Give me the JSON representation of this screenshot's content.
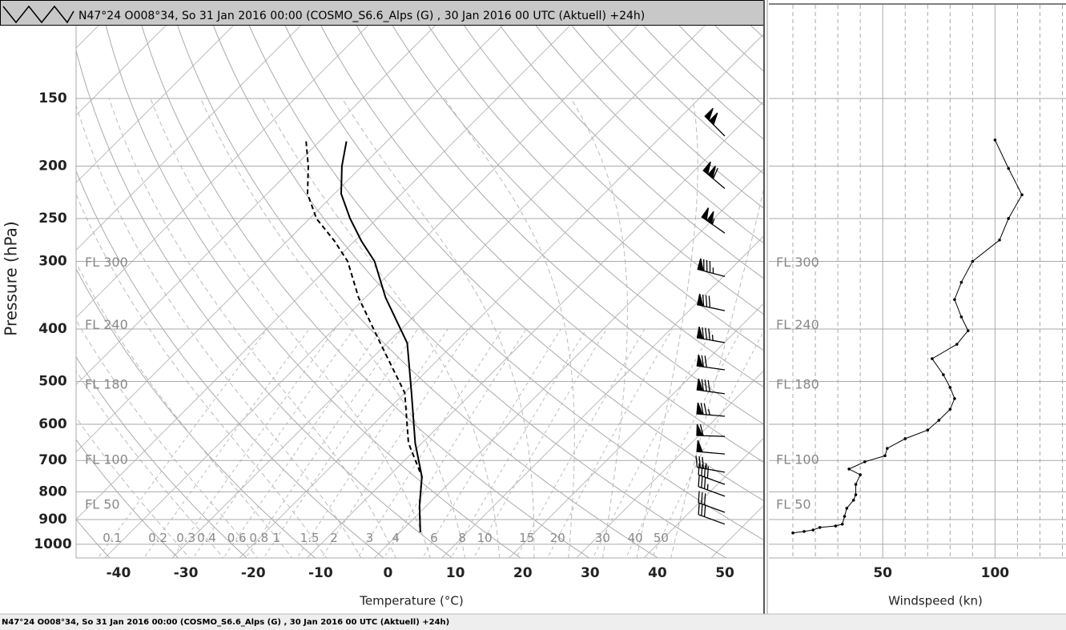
{
  "header": {
    "title": "N47°24 O008°34, So 31 Jan 2016 00:00 (COSMO_S6.6_Alps (G) , 30 Jan 2016 00 UTC (Aktuell) +24h)"
  },
  "status_bar": {
    "text": "N47°24 O008°34, So 31 Jan 2016 00:00 (COSMO_S6.6_Alps (G) , 30 Jan 2016 00 UTC (Aktuell) +24h)"
  },
  "chart_data": [
    {
      "type": "skewt",
      "xlabel": "Temperature (°C)",
      "ylabel": "Pressure (hPa)",
      "xlim": [
        -46.3,
        55.7
      ],
      "xticks": [
        -40,
        -30,
        -20,
        -10,
        0,
        10,
        20,
        30,
        40,
        50
      ],
      "ylim": [
        1060,
        110
      ],
      "yticks": [
        150,
        200,
        250,
        300,
        400,
        500,
        600,
        700,
        800,
        900,
        1000
      ],
      "log_y": true,
      "grid": true,
      "pressure": [
        180,
        200,
        225,
        250,
        275,
        300,
        350,
        425,
        525,
        650,
        750,
        850,
        950
      ],
      "series": [
        {
          "color": "#000000",
          "style": "solid",
          "values": [
            -66,
            -63,
            -59,
            -54,
            -49,
            -44,
            -37,
            -27,
            -19,
            -11,
            -5,
            -1,
            3
          ]
        },
        {
          "color": "#000000",
          "style": "dashed",
          "values": [
            -72,
            -68,
            -64,
            -59,
            -53,
            -48,
            -41,
            -31,
            -20,
            -12,
            -5,
            -1,
            3
          ]
        }
      ],
      "mixing_ratio_labels": [
        0.1,
        0.2,
        0.3,
        0.4,
        0.6,
        0.8,
        1,
        1.5,
        2,
        3,
        4,
        6,
        8,
        10,
        15,
        20,
        30,
        40,
        50
      ],
      "flight_levels": [
        {
          "label": "FL 300",
          "pressure": 302
        },
        {
          "label": "FL 240",
          "pressure": 394
        },
        {
          "label": "FL 180",
          "pressure": 508
        },
        {
          "label": "FL 100",
          "pressure": 700
        },
        {
          "label": "FL 50",
          "pressure": 847
        }
      ],
      "wind_barbs": {
        "pressure": [
          176,
          220,
          266,
          320,
          370,
          424,
          476,
          527,
          580,
          632,
          681,
          736,
          775,
          815,
          873,
          918
        ],
        "speed": [
          100,
          110,
          105,
          85,
          83,
          85,
          72,
          80,
          75,
          60,
          50,
          35,
          40,
          38,
          34,
          30
        ],
        "direction": [
          315,
          310,
          305,
          285,
          282,
          280,
          278,
          278,
          275,
          272,
          275,
          280,
          290,
          290,
          290,
          290
        ]
      }
    },
    {
      "type": "line",
      "xlabel": "Windspeed (kn)",
      "xlim": [
        -0.7,
        131.6
      ],
      "xticks": [
        50,
        100
      ],
      "minor_xticks": [
        10,
        20,
        30,
        40,
        60,
        70,
        80,
        90,
        110,
        120,
        130
      ],
      "ylim": [
        1060,
        110
      ],
      "yticks": [
        150,
        200,
        250,
        300,
        400,
        500,
        600,
        700,
        800,
        900,
        1000
      ],
      "log_y": true,
      "color": "#000000",
      "values": [
        100,
        106,
        112,
        106,
        102,
        90,
        85,
        82,
        85,
        88,
        83,
        72,
        77,
        80,
        82,
        80,
        75,
        70,
        60,
        52,
        51,
        42,
        35,
        40,
        38,
        38,
        37,
        34,
        33,
        32,
        29,
        22,
        19,
        15,
        10
      ],
      "pressure": [
        179,
        202,
        226,
        250,
        274,
        300,
        328,
        353,
        380,
        403,
        427,
        454,
        486,
        513,
        538,
        563,
        590,
        615,
        638,
        665,
        686,
        704,
        726,
        744,
        775,
        810,
        829,
        858,
        888,
        918,
        925,
        931,
        941,
        947,
        953
      ]
    }
  ]
}
